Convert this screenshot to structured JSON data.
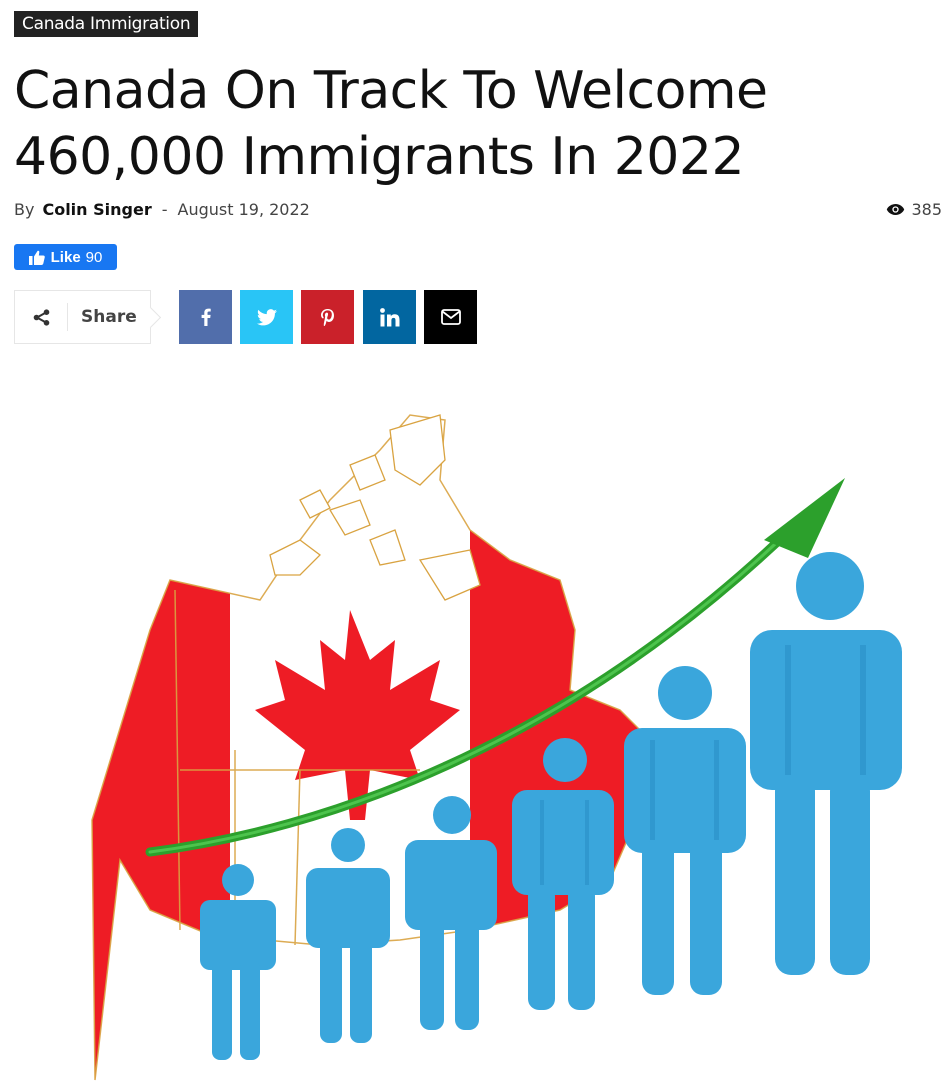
{
  "category": "Canada Immigration",
  "article": {
    "title": "Canada On Track To Welcome 460,000 Immigrants In 2022",
    "by_label": "By",
    "author": "Colin Singer",
    "separator": "-",
    "date": "August 19, 2022",
    "views": "385"
  },
  "facebook_like": {
    "label": "Like",
    "count": "90"
  },
  "share": {
    "label": "Share",
    "buttons": [
      {
        "name": "facebook",
        "icon": "facebook-icon",
        "color": "#516eab"
      },
      {
        "name": "twitter",
        "icon": "twitter-icon",
        "color": "#29c5f6"
      },
      {
        "name": "pinterest",
        "icon": "pinterest-icon",
        "color": "#ca212a"
      },
      {
        "name": "linkedin",
        "icon": "linkedin-icon",
        "color": "#0266a0"
      },
      {
        "name": "email",
        "icon": "mail-icon",
        "color": "#000000"
      }
    ]
  },
  "hero_image": {
    "flag_colors": {
      "red": "#ee1c25",
      "white": "#ffffff"
    },
    "arrow_color": "#2ca02c",
    "figure_color": "#3aa6dc"
  }
}
